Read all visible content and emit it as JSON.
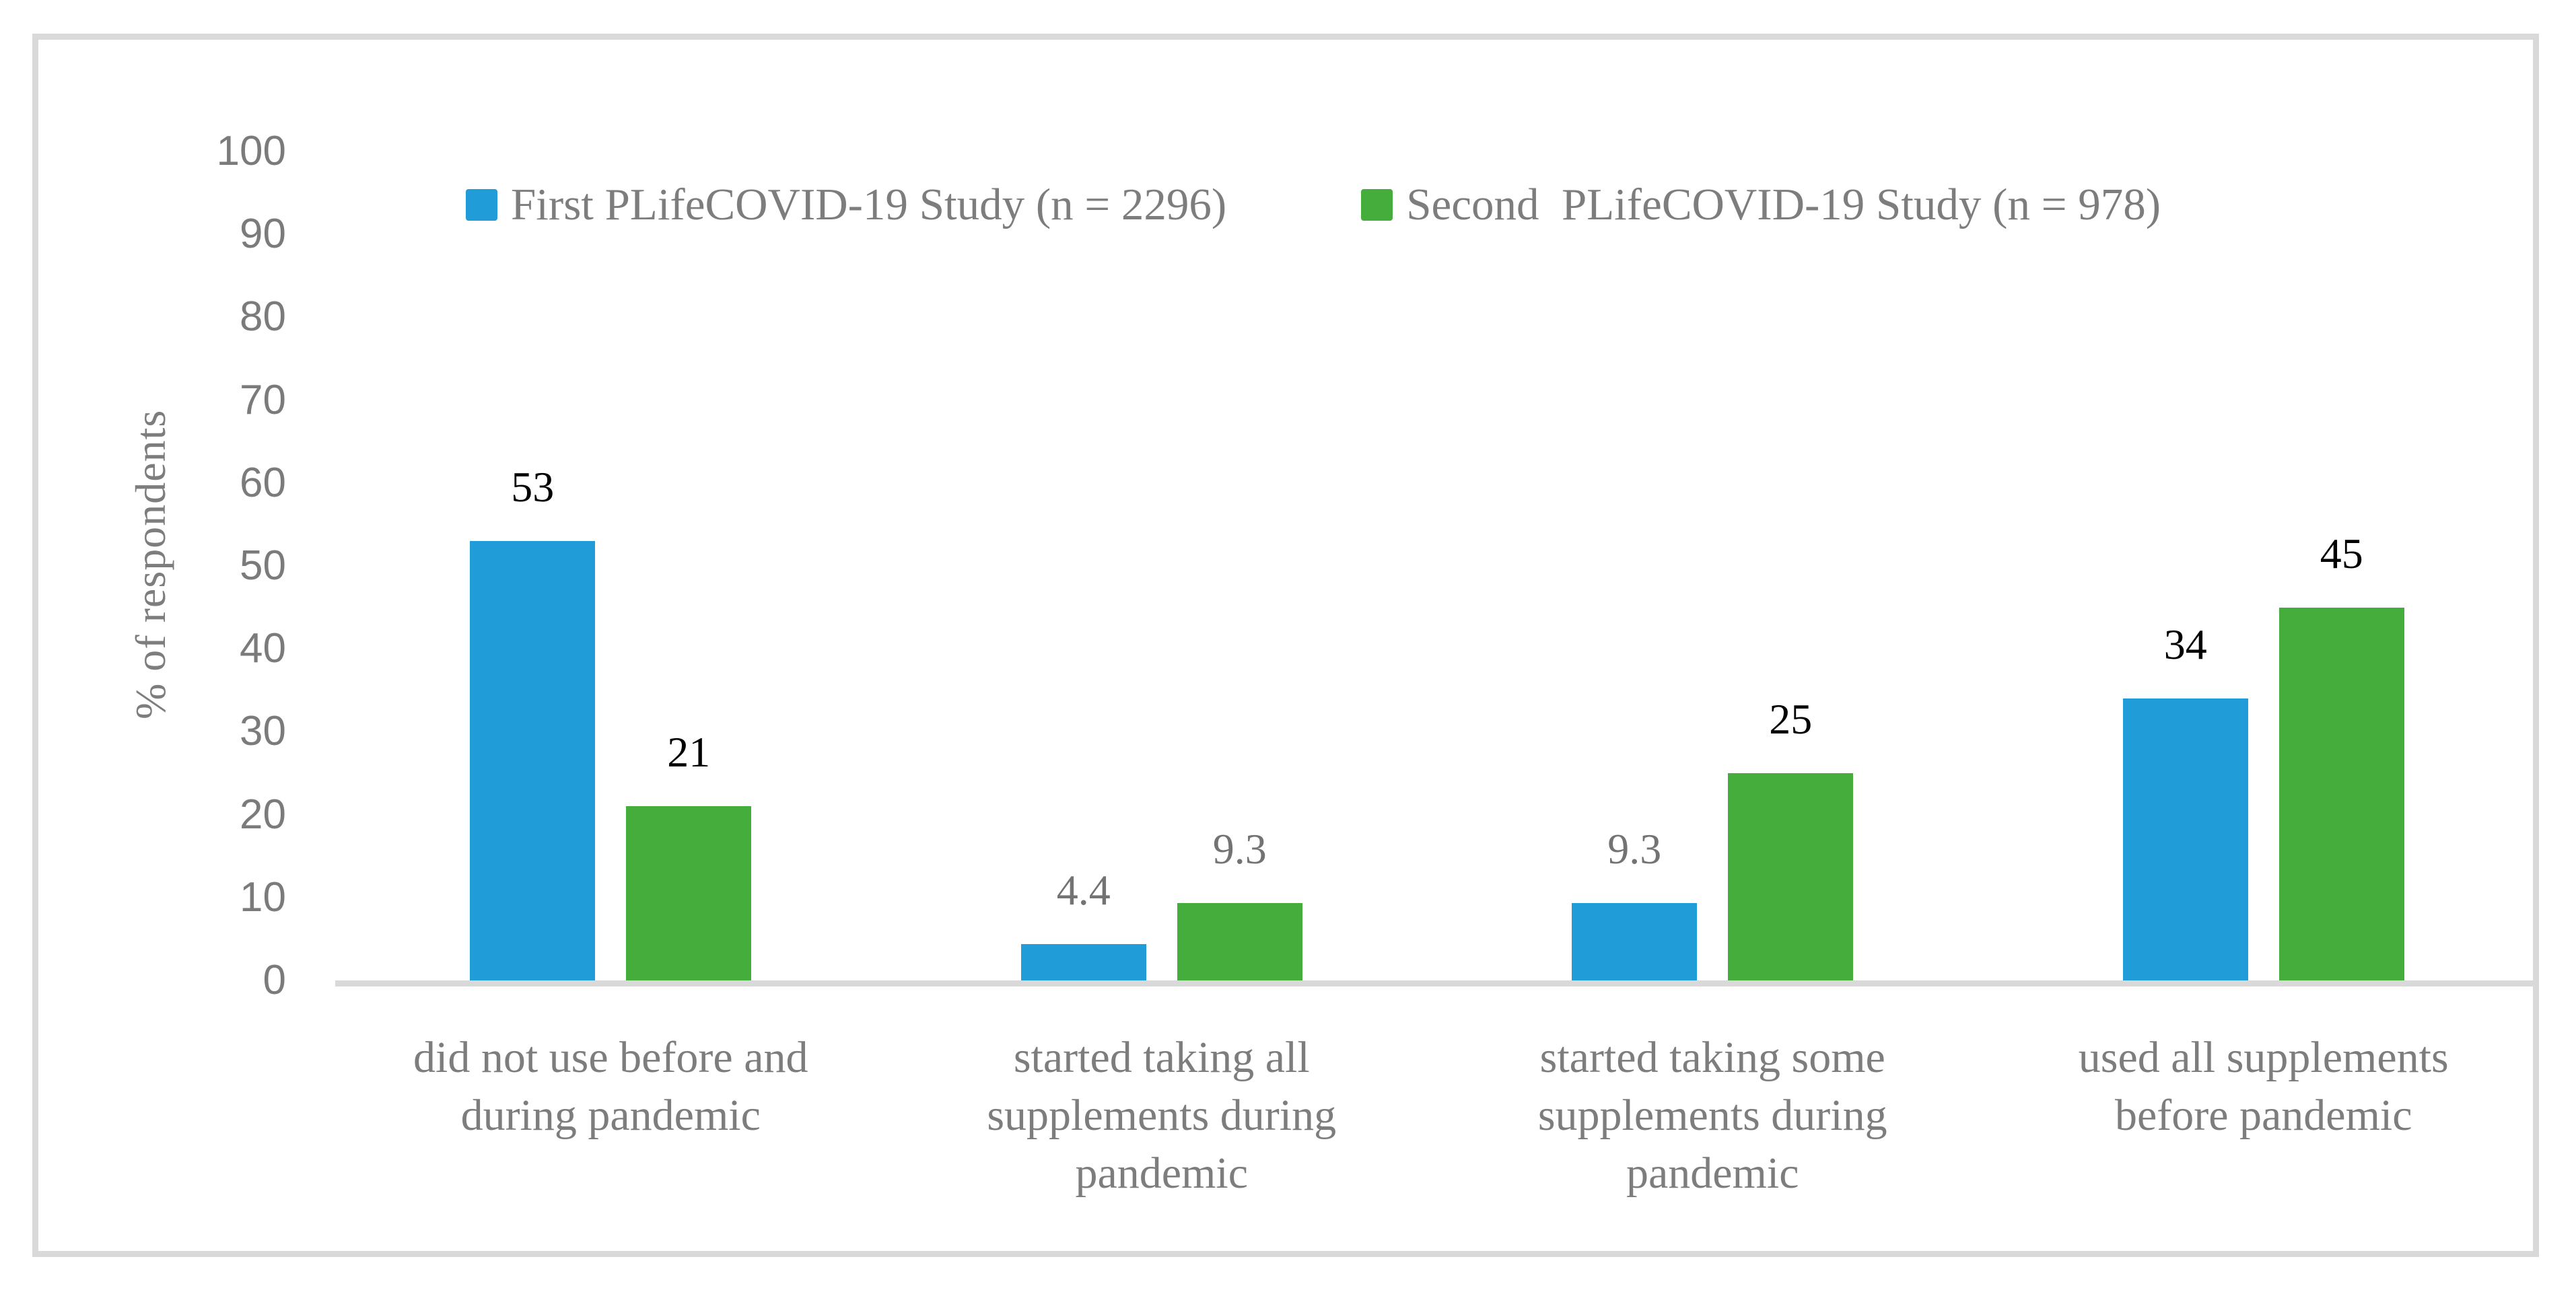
{
  "chart_data": {
    "type": "bar",
    "title": "",
    "ylabel": "% of respondents",
    "xlabel": "",
    "ylim": [
      0,
      100
    ],
    "yticks": [
      0,
      10,
      20,
      30,
      40,
      50,
      60,
      70,
      80,
      90,
      100
    ],
    "grid": false,
    "legend_position": "top",
    "categories": [
      "did not use before and during pandemic",
      "started taking all supplements during pandemic",
      "started taking some supplements during pandemic",
      "used all supplements before pandemic"
    ],
    "series": [
      {
        "name": "First PLifeCOVID-19 Study (n = 2296)",
        "color": "#209CD8",
        "values": [
          53,
          4.4,
          9.3,
          34
        ],
        "value_labels": [
          "53",
          "4.4",
          "9.3",
          "34"
        ],
        "label_colors": [
          "#000000",
          "#737373",
          "#737373",
          "#000000"
        ]
      },
      {
        "name": "Second  PLifeCOVID-19 Study (n = 978)",
        "color": "#45AD3B",
        "values": [
          21,
          9.3,
          25,
          45
        ],
        "value_labels": [
          "21",
          "9.3",
          "25",
          "45"
        ],
        "label_colors": [
          "#000000",
          "#737373",
          "#000000",
          "#000000"
        ]
      }
    ]
  },
  "colors": {
    "frame_border": "#D9D9D9",
    "axis_line": "#D9D9D9",
    "axis_text": "#7B7B7B",
    "label_text": "#7D7D7D"
  }
}
